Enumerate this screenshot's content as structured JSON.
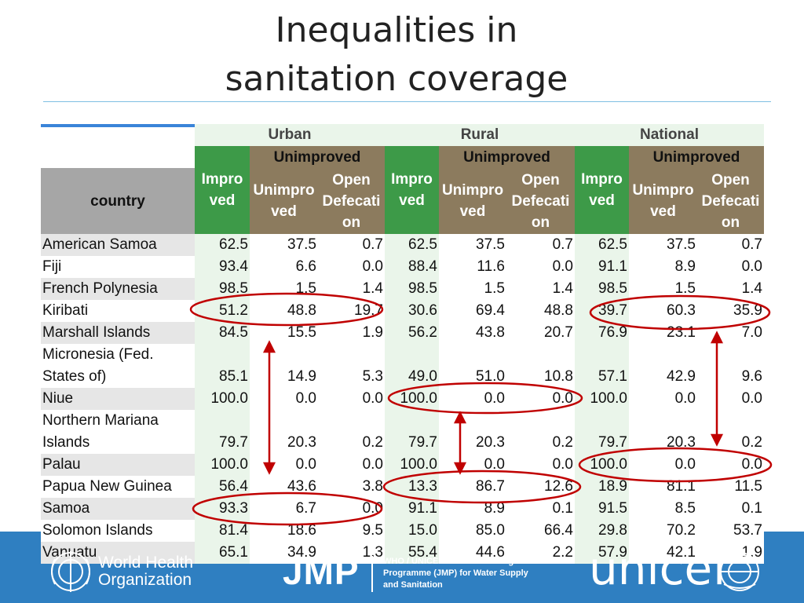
{
  "title_lines": [
    "Inequalities in",
    "sanitation coverage"
  ],
  "colors": {
    "header_gray": "#a6a6a6",
    "sub_brown": "#8c7b5e",
    "green_dark": "#3d9a48",
    "green_light": "#eaf5ea",
    "circle_red": "#c00000",
    "footer_blue": "#2f7fc1"
  },
  "table": {
    "groups": [
      "Urban",
      "Rural",
      "National"
    ],
    "unimproved_label": "Unimproved",
    "improved_label": "Impro\nved",
    "unimproved_sub_label": "Unimpro\nved",
    "open_def_label": "Open\nDefecati\non",
    "country_header": "country",
    "rows": [
      {
        "country": "American Samoa",
        "values": [
          "62.5",
          "37.5",
          "0.7",
          "62.5",
          "37.5",
          "0.7",
          "62.5",
          "37.5",
          "0.7"
        ]
      },
      {
        "country": "Fiji",
        "values": [
          "93.4",
          "6.6",
          "0.0",
          "88.4",
          "11.6",
          "0.0",
          "91.1",
          "8.9",
          "0.0"
        ]
      },
      {
        "country": "French Polynesia",
        "values": [
          "98.5",
          "1.5",
          "1.4",
          "98.5",
          "1.5",
          "1.4",
          "98.5",
          "1.5",
          "1.4"
        ]
      },
      {
        "country": "Kiribati",
        "values": [
          "51.2",
          "48.8",
          "19.7",
          "30.6",
          "69.4",
          "48.8",
          "39.7",
          "60.3",
          "35.9"
        ]
      },
      {
        "country": "Marshall Islands",
        "values": [
          "84.5",
          "15.5",
          "1.9",
          "56.2",
          "43.8",
          "20.7",
          "76.9",
          "23.1",
          "7.0"
        ]
      },
      {
        "country": "Micronesia (Fed.\nStates of)",
        "values": [
          "85.1",
          "14.9",
          "5.3",
          "49.0",
          "51.0",
          "10.8",
          "57.1",
          "42.9",
          "9.6"
        ]
      },
      {
        "country": "Niue",
        "values": [
          "100.0",
          "0.0",
          "0.0",
          "100.0",
          "0.0",
          "0.0",
          "100.0",
          "0.0",
          "0.0"
        ]
      },
      {
        "country": "Northern Mariana\nIslands",
        "values": [
          "79.7",
          "20.3",
          "0.2",
          "79.7",
          "20.3",
          "0.2",
          "79.7",
          "20.3",
          "0.2"
        ]
      },
      {
        "country": "Palau",
        "values": [
          "100.0",
          "0.0",
          "0.0",
          "100.0",
          "0.0",
          "0.0",
          "100.0",
          "0.0",
          "0.0"
        ]
      },
      {
        "country": "Papua New Guinea",
        "values": [
          "56.4",
          "43.6",
          "3.8",
          "13.3",
          "86.7",
          "12.6",
          "18.9",
          "81.1",
          "11.5"
        ]
      },
      {
        "country": "Samoa",
        "values": [
          "93.3",
          "6.7",
          "0.0",
          "91.1",
          "8.9",
          "0.1",
          "91.5",
          "8.5",
          "0.1"
        ]
      },
      {
        "country": "Solomon Islands",
        "values": [
          "81.4",
          "18.6",
          "9.5",
          "15.0",
          "85.0",
          "66.4",
          "29.8",
          "70.2",
          "53.7"
        ]
      },
      {
        "country": "Vanuatu",
        "values": [
          "65.1",
          "34.9",
          "1.3",
          "55.4",
          "44.6",
          "2.2",
          "57.9",
          "42.1",
          "1.9"
        ]
      }
    ]
  },
  "footer": {
    "who_line1": "World Health",
    "who_line2": "Organization",
    "jmp_logo": "JMP",
    "jmp_text_line1": "WHO / UNICEF Joint Monitoring",
    "jmp_text_line2": "Programme (JMP) for Water Supply",
    "jmp_text_line3": "and Sanitation",
    "unicef_logo": "unicef"
  }
}
